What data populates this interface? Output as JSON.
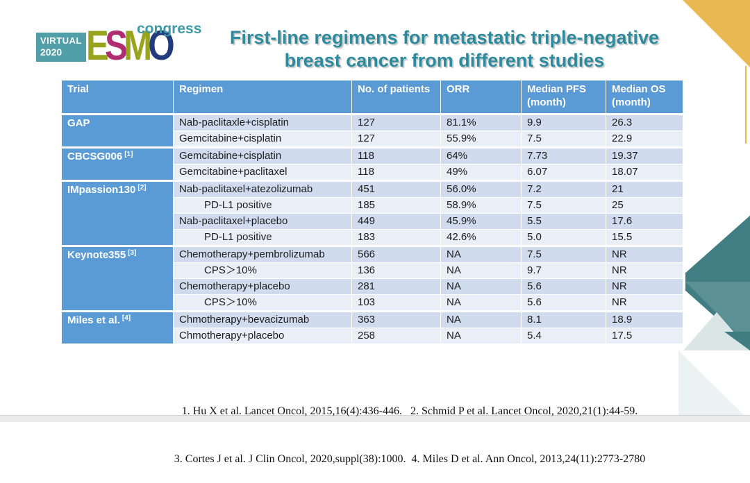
{
  "logo": {
    "virtual_label": "VIRTUAL",
    "year": "2020",
    "congress": "congress",
    "esmo_letters": [
      {
        "char": "E",
        "color": "#98A41D"
      },
      {
        "char": "S",
        "color": "#B12D72"
      },
      {
        "char": "M",
        "color": "#98A41D"
      },
      {
        "char": "O",
        "color": "#233A7D"
      }
    ]
  },
  "title": {
    "line1": "First-line regimens for metastatic triple-negative",
    "line2": "breast cancer from different studies"
  },
  "table": {
    "headers": [
      "Trial",
      "Regimen",
      "No. of patients",
      "ORR",
      "Median PFS (month)",
      "Median OS (month)"
    ],
    "groups": [
      {
        "trial": "GAP",
        "sup": "",
        "rows": [
          {
            "regimen": "Nab-paclitaxle+cisplatin",
            "indent": false,
            "patients": "127",
            "orr": "81.1%",
            "pfs": "9.9",
            "os": "26.3"
          },
          {
            "regimen": "Gemcitabine+cisplatin",
            "indent": false,
            "patients": "127",
            "orr": "55.9%",
            "pfs": "7.5",
            "os": "22.9"
          }
        ]
      },
      {
        "trial": "CBCSG006",
        "sup": "[1]",
        "rows": [
          {
            "regimen": "Gemcitabine+cisplatin",
            "indent": false,
            "patients": "118",
            "orr": "64%",
            "pfs": "7.73",
            "os": "19.37"
          },
          {
            "regimen": "Gemcitabine+paclitaxel",
            "indent": false,
            "patients": "118",
            "orr": "49%",
            "pfs": "6.07",
            "os": "18.07"
          }
        ]
      },
      {
        "trial": "IMpassion130",
        "sup": "[2]",
        "rows": [
          {
            "regimen": "Nab-paclitaxel+atezolizumab",
            "indent": false,
            "patients": "451",
            "orr": "56.0%",
            "pfs": "7.2",
            "os": "21"
          },
          {
            "regimen": "PD-L1 positive",
            "indent": true,
            "patients": "185",
            "orr": "58.9%",
            "pfs": "7.5",
            "os": "25"
          },
          {
            "regimen": "Nab-paclitaxel+placebo",
            "indent": false,
            "patients": "449",
            "orr": "45.9%",
            "pfs": "5.5",
            "os": "17.6"
          },
          {
            "regimen": "PD-L1 positive",
            "indent": true,
            "patients": "183",
            "orr": "42.6%",
            "pfs": "5.0",
            "os": "15.5"
          }
        ]
      },
      {
        "trial": "Keynote355",
        "sup": "[3]",
        "rows": [
          {
            "regimen": "Chemotherapy+pembrolizumab",
            "indent": false,
            "patients": "566",
            "orr": "NA",
            "pfs": "7.5",
            "os": "NR"
          },
          {
            "regimen": "CPS＞10%",
            "indent": true,
            "patients": "136",
            "orr": "NA",
            "pfs": "9.7",
            "os": "NR"
          },
          {
            "regimen": "Chemotherapy+placebo",
            "indent": false,
            "patients": "281",
            "orr": "NA",
            "pfs": "5.6",
            "os": "NR"
          },
          {
            "regimen": "CPS＞10%",
            "indent": true,
            "patients": "103",
            "orr": "NA",
            "pfs": "5.6",
            "os": "NR"
          }
        ]
      },
      {
        "trial": "Miles et al.",
        "sup": "[4]",
        "rows": [
          {
            "regimen": "Chmotherapy+bevacizumab",
            "indent": false,
            "patients": "363",
            "orr": "NA",
            "pfs": "8.1",
            "os": "18.9"
          },
          {
            "regimen": "Chmotherapy+placebo",
            "indent": false,
            "patients": "258",
            "orr": "NA",
            "pfs": "5.4",
            "os": "17.5"
          }
        ]
      }
    ]
  },
  "references": {
    "line1": "1. Hu X et al. Lancet Oncol, 2015,16(4):436-446.   2. Schmid P et al. Lancet Oncol, 2020,21(1):44-59.",
    "line2": "3. Cortes J et al. J Clin Oncol, 2020,suppl(38):1000.  4. Miles D et al. Ann Oncol, 2013,24(11):2773-2780"
  },
  "colors": {
    "header_blue": "#5B9BD5",
    "row_band_dark": "#D0DCEE",
    "row_band_light": "#E9EEF7",
    "title_teal": "#2E8B9E",
    "virtual_box_teal": "#4F9EA8",
    "congress_teal": "#3E99A8",
    "corner_gold": "#E9B851",
    "diamond_teal_dark": "#417E84",
    "triangle_teal_pale": "#D9E6E5",
    "triangle_teal_faint": "#ECF2F1"
  }
}
